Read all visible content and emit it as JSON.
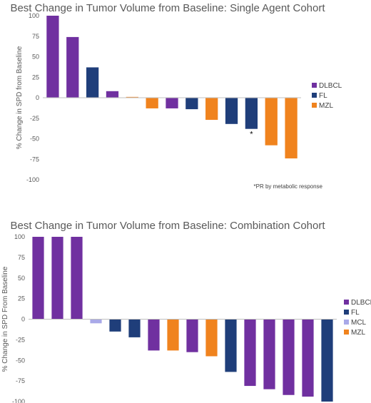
{
  "chart_data": [
    {
      "type": "bar",
      "title": "Best Change in Tumor Volume from Baseline: Single Agent Cohort",
      "ylabel": "% Change in SPD from Baseline",
      "ylim": [
        -100,
        100
      ],
      "yticks": [
        100,
        75,
        50,
        25,
        0,
        -25,
        -50,
        -75,
        -100
      ],
      "grid": false,
      "legend_position": "right",
      "legend": [
        {
          "name": "DLBCL",
          "color": "#7030A0"
        },
        {
          "name": "FL",
          "color": "#1F3E7A"
        },
        {
          "name": "MZL",
          "color": "#F0831E"
        }
      ],
      "bars": [
        {
          "group": "DLBCL",
          "value": 100
        },
        {
          "group": "DLBCL",
          "value": 74
        },
        {
          "group": "FL",
          "value": 37
        },
        {
          "group": "DLBCL",
          "value": 8
        },
        {
          "group": "MZL",
          "value": 1
        },
        {
          "group": "MZL",
          "value": -13
        },
        {
          "group": "DLBCL",
          "value": -13
        },
        {
          "group": "FL",
          "value": -14
        },
        {
          "group": "MZL",
          "value": -27
        },
        {
          "group": "FL",
          "value": -32
        },
        {
          "group": "FL",
          "value": -38,
          "marker": "*"
        },
        {
          "group": "MZL",
          "value": -58
        },
        {
          "group": "MZL",
          "value": -74
        }
      ],
      "footnote": "*PR by metabolic response"
    },
    {
      "type": "bar",
      "title": "Best Change in Tumor Volume from Baseline: Combination Cohort",
      "ylabel": "% Change in SPD From Baseline",
      "ylim": [
        -100,
        100
      ],
      "yticks": [
        100,
        75,
        50,
        25,
        0,
        -25,
        -50,
        -75,
        -100
      ],
      "grid": false,
      "legend_position": "right",
      "legend": [
        {
          "name": "DLBCL",
          "color": "#7030A0"
        },
        {
          "name": "FL",
          "color": "#1F3E7A"
        },
        {
          "name": "MCL",
          "color": "#A9A9E8"
        },
        {
          "name": "MZL",
          "color": "#F0831E"
        }
      ],
      "bars": [
        {
          "group": "DLBCL",
          "value": 100
        },
        {
          "group": "DLBCL",
          "value": 100
        },
        {
          "group": "DLBCL",
          "value": 100
        },
        {
          "group": "MCL",
          "value": -5
        },
        {
          "group": "FL",
          "value": -15
        },
        {
          "group": "FL",
          "value": -22
        },
        {
          "group": "DLBCL",
          "value": -38
        },
        {
          "group": "MZL",
          "value": -38
        },
        {
          "group": "DLBCL",
          "value": -40
        },
        {
          "group": "MZL",
          "value": -45
        },
        {
          "group": "FL",
          "value": -64
        },
        {
          "group": "DLBCL",
          "value": -81
        },
        {
          "group": "DLBCL",
          "value": -85
        },
        {
          "group": "DLBCL",
          "value": -92
        },
        {
          "group": "DLBCL",
          "value": -94
        },
        {
          "group": "FL",
          "value": -100
        }
      ]
    }
  ]
}
